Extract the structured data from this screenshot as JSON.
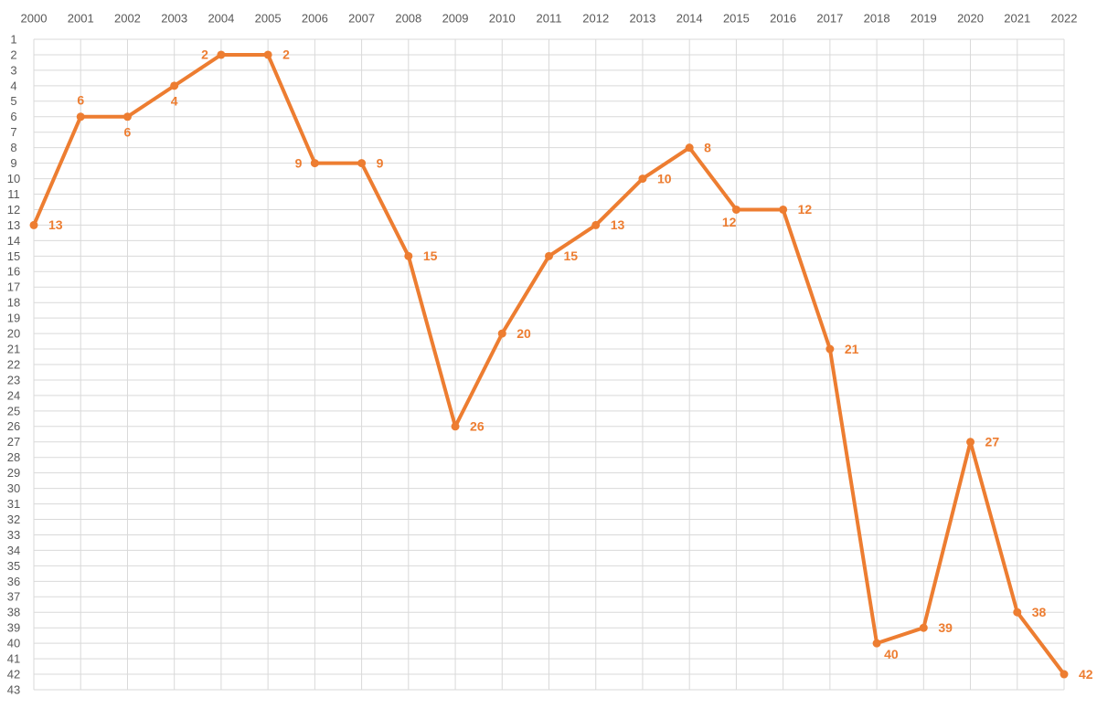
{
  "chart_data": {
    "type": "line",
    "categories": [
      "2000",
      "2001",
      "2002",
      "2003",
      "2004",
      "2005",
      "2006",
      "2007",
      "2008",
      "2009",
      "2010",
      "2011",
      "2012",
      "2013",
      "2014",
      "2015",
      "2016",
      "2017",
      "2018",
      "2019",
      "2020",
      "2021",
      "2022"
    ],
    "series": [
      {
        "color": "#ed7d31",
        "values": [
          13,
          6,
          6,
          4,
          2,
          2,
          9,
          9,
          15,
          26,
          20,
          15,
          13,
          10,
          8,
          12,
          12,
          21,
          40,
          39,
          27,
          38,
          42
        ]
      }
    ],
    "ylim": [
      1,
      43
    ],
    "yticks": [
      1,
      2,
      3,
      4,
      5,
      6,
      7,
      8,
      9,
      10,
      11,
      12,
      13,
      14,
      15,
      16,
      17,
      18,
      19,
      20,
      21,
      22,
      23,
      24,
      25,
      26,
      27,
      28,
      29,
      30,
      31,
      32,
      33,
      34,
      35,
      36,
      37,
      38,
      39,
      40,
      41,
      42,
      43
    ],
    "y_reversed": true,
    "grid": true,
    "data_labels": true
  }
}
